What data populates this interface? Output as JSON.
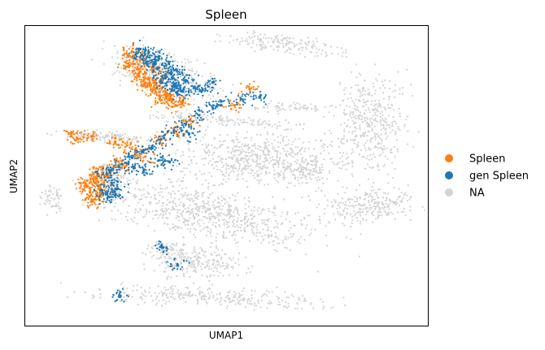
{
  "chart_data": {
    "type": "scatter",
    "title": "Spleen",
    "xlabel": "UMAP1",
    "ylabel": "UMAP2",
    "xticks": [],
    "yticks": [],
    "xlim": [
      -12,
      12
    ],
    "ylim": [
      -12,
      12
    ],
    "legend_position": "right",
    "series": [
      {
        "name": "Spleen",
        "color": "#ff7f0e",
        "x": [
          -5.8,
          -5.5,
          -5.1,
          -4.6,
          -4.1,
          -3.6,
          -3.2,
          -5.6,
          -5.0,
          -4.4,
          -3.8,
          -5.9,
          -5.2,
          -4.8,
          -4.2,
          -3.5,
          -3.0,
          -2.6,
          -3.9,
          -4.7,
          -8.4,
          -8.1,
          -7.8,
          -7.5,
          -8.3,
          -7.9,
          -7.4,
          -8.0,
          -7.6,
          -7.2,
          -6.9,
          -7.7,
          -9.2,
          -8.8,
          -8.0,
          -6.6,
          -5.9,
          -5.4,
          -4.8,
          -6.4,
          -6.0,
          -3.9,
          -3.0,
          -2.2,
          0.5,
          1.4
        ],
        "y": [
          9.5,
          8.9,
          8.3,
          7.7,
          7.1,
          6.6,
          6.1,
          9.9,
          9.3,
          8.6,
          7.9,
          8.7,
          7.9,
          7.4,
          6.7,
          6.3,
          5.6,
          5.9,
          6.0,
          7.1,
          -0.6,
          -1.3,
          -1.9,
          -0.9,
          -0.9,
          -0.3,
          -1.5,
          -2.0,
          -0.5,
          -0.1,
          0.4,
          0.3,
          3.4,
          2.9,
          3.1,
          2.7,
          2.4,
          1.9,
          1.5,
          1.1,
          0.7,
          2.8,
          3.5,
          4.4,
          5.6,
          6.9
        ]
      },
      {
        "name": "gen Spleen",
        "color": "#1f77b4",
        "x": [
          -5.1,
          -4.6,
          -4.0,
          -3.4,
          -2.9,
          -2.4,
          -4.7,
          -4.1,
          -3.6,
          -3.1,
          -2.6,
          -5.0,
          -4.2,
          -3.3,
          -2.7,
          -3.8,
          -3.0,
          -1.9,
          -1.4,
          -0.8,
          -7.1,
          -6.8,
          -6.5,
          -7.4,
          -7.0,
          -6.9,
          -6.2,
          -5.6,
          -5.0,
          -4.4,
          -3.7,
          -4.9,
          -3.1,
          -2.4,
          -1.6,
          -0.8,
          -5.5,
          -4.0,
          -3.4,
          -2.2,
          -6.6,
          -0.3,
          0.9,
          2.0,
          -2.9,
          -3.8,
          -6.3
        ],
        "y": [
          10.1,
          9.8,
          9.5,
          8.9,
          8.3,
          7.6,
          9.1,
          8.5,
          7.9,
          7.2,
          6.7,
          9.6,
          8.9,
          8.1,
          6.8,
          7.4,
          7.0,
          7.0,
          6.8,
          7.4,
          0.1,
          -0.6,
          -1.1,
          -1.2,
          -1.7,
          0.4,
          0.9,
          1.4,
          1.9,
          2.3,
          3.0,
          0.4,
          3.6,
          4.1,
          4.8,
          5.4,
          0.6,
          1.2,
          1.1,
          3.3,
          -1.6,
          5.9,
          6.1,
          6.3,
          -7.1,
          -5.7,
          -9.6
        ]
      },
      {
        "name": "NA",
        "color": "#d3d3d3",
        "clusters": [
          {
            "cx": -3.8,
            "cy": 8.0,
            "rx": 3.0,
            "ry": 1.5,
            "rot": -28,
            "n": 380
          },
          {
            "cx": 3.5,
            "cy": 10.5,
            "rx": 3.0,
            "ry": 0.7,
            "rot": -10,
            "n": 170
          },
          {
            "cx": 2.0,
            "cy": 1.3,
            "rx": 4.6,
            "ry": 1.9,
            "rot": -4,
            "n": 620
          },
          {
            "cx": -1.0,
            "cy": -3.0,
            "rx": 5.8,
            "ry": 1.8,
            "rot": -14,
            "n": 720
          },
          {
            "cx": -1.8,
            "cy": -6.8,
            "rx": 2.5,
            "ry": 1.2,
            "rot": -6,
            "n": 260
          },
          {
            "cx": -1.0,
            "cy": -9.7,
            "rx": 6.2,
            "ry": 0.7,
            "rot": -3,
            "n": 290
          },
          {
            "cx": 8.6,
            "cy": 4.3,
            "rx": 1.9,
            "ry": 3.4,
            "rot": 0,
            "n": 420
          },
          {
            "cx": 8.5,
            "cy": -2.4,
            "rx": 2.5,
            "ry": 1.2,
            "rot": 6,
            "n": 260
          },
          {
            "cx": -6.8,
            "cy": -0.4,
            "rx": 1.1,
            "ry": 1.2,
            "rot": 0,
            "n": 110
          },
          {
            "cx": -10.3,
            "cy": -1.9,
            "rx": 0.6,
            "ry": 1.0,
            "rot": 10,
            "n": 55
          },
          {
            "cx": -7.0,
            "cy": 3.1,
            "rx": 2.6,
            "ry": 0.4,
            "rot": -4,
            "n": 120
          },
          {
            "cx": 0.0,
            "cy": 4.4,
            "rx": 4.0,
            "ry": 0.35,
            "rot": -6,
            "n": 130
          },
          {
            "cx": 3.8,
            "cy": 5.4,
            "rx": 2.2,
            "ry": 0.35,
            "rot": 0,
            "n": 70
          },
          {
            "cx": 4.9,
            "cy": 0.6,
            "rx": 0.8,
            "ry": 0.8,
            "rot": 0,
            "n": 80
          },
          {
            "cx": -3.5,
            "cy": -5.8,
            "rx": 1.0,
            "ry": 0.4,
            "rot": 0,
            "n": 40
          }
        ]
      }
    ]
  }
}
